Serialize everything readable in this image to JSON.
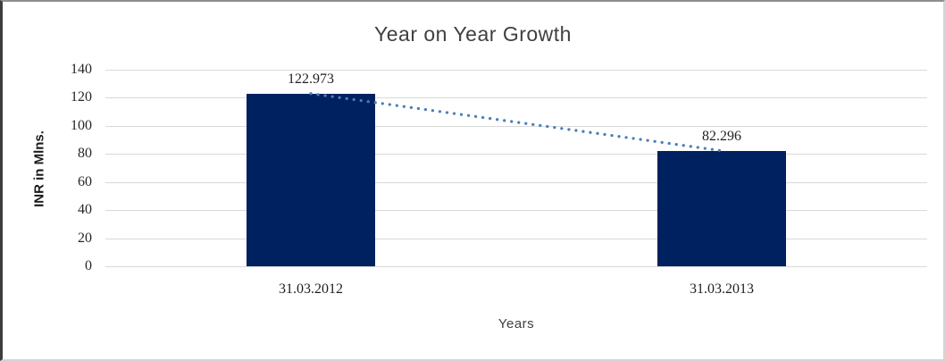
{
  "chart_data": {
    "type": "bar",
    "title": "Year on Year Growth",
    "xlabel": "Years",
    "ylabel": "INR in Mlns.",
    "categories": [
      "31.03.2012",
      "31.03.2013"
    ],
    "values": [
      122.973,
      82.296
    ],
    "data_labels": [
      "122.973",
      "82.296"
    ],
    "ylim": [
      0,
      140
    ],
    "yticks": [
      0,
      20,
      40,
      60,
      80,
      100,
      120,
      140
    ],
    "grid": true,
    "legend": false,
    "bar_color": "#00215f",
    "gridline_color": "#d9d9d9",
    "title_color": "#404040",
    "trendline": {
      "style": "dotted",
      "color": "#4a7ebb",
      "points": [
        122.973,
        82.296
      ]
    }
  }
}
